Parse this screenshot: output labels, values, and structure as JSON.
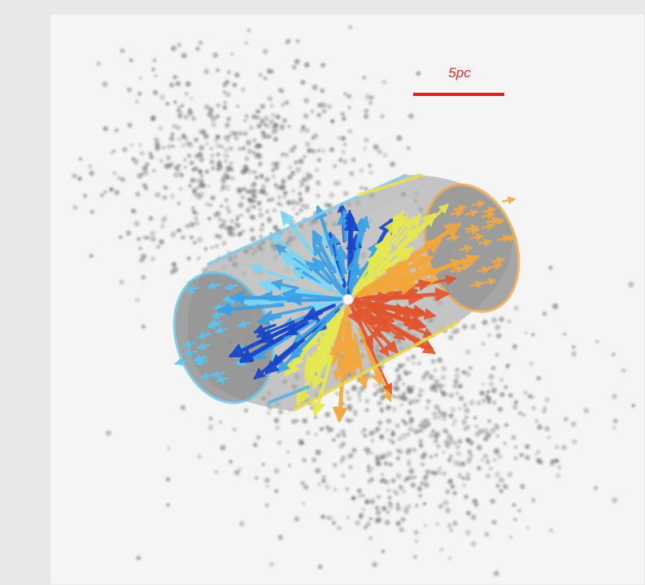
{
  "scale_bar": {
    "label": "5pc",
    "color": "#e0211d"
  },
  "colors": {
    "background": "#f4f4f4",
    "shell": "#8f8f8f",
    "dots": "#6a6a6a",
    "vectors": [
      "#1745c8",
      "#3aa0e6",
      "#79d6f2",
      "#e6e84e",
      "#f3a73a",
      "#e1542c"
    ]
  },
  "elements": {
    "background_points": "scattered-gray-points",
    "shell": "gray-cylinder-shell",
    "arrows": "velocity-vector-arrows",
    "center_marker": "white-center-dot"
  }
}
